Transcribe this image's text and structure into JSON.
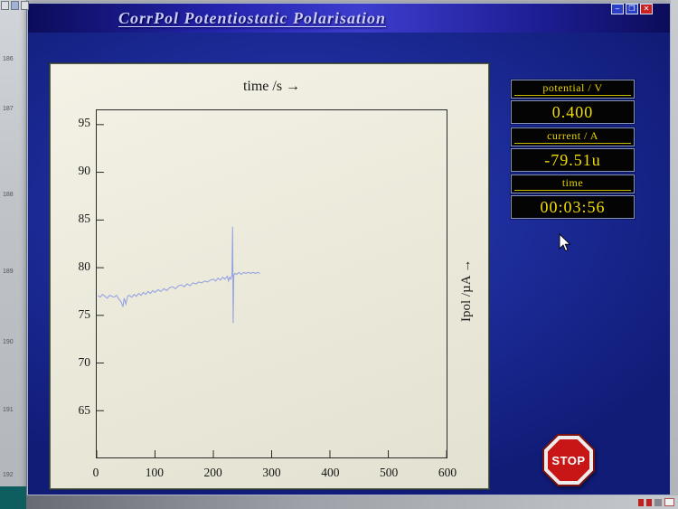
{
  "window": {
    "title": "CorrPol Potentiostatic Polarisation",
    "controls": {
      "minimize": "–",
      "maximize": "❒",
      "close": "✕"
    }
  },
  "side_strip": {
    "numbers": [
      "186",
      "187",
      "188",
      "189",
      "190",
      "191",
      "192"
    ]
  },
  "chart_data": {
    "type": "line",
    "title": "time /s →",
    "xlabel": "time /s",
    "ylabel": "Ipol /µA →",
    "xlim": [
      0,
      600
    ],
    "ylim": [
      60.1,
      96.5
    ],
    "xticks": [
      0,
      100,
      200,
      300,
      400,
      500,
      600
    ],
    "yticks": [
      65,
      70,
      75,
      80,
      85,
      90,
      95
    ],
    "grid": false,
    "legend": false,
    "series": [
      {
        "name": "Ipol",
        "color": "#96a4e2",
        "points": [
          [
            2,
            77.1
          ],
          [
            6,
            76.9
          ],
          [
            10,
            77.2
          ],
          [
            14,
            77.0
          ],
          [
            18,
            76.8
          ],
          [
            22,
            77.1
          ],
          [
            26,
            77.0
          ],
          [
            30,
            76.9
          ],
          [
            34,
            77.1
          ],
          [
            38,
            76.7
          ],
          [
            42,
            76.4
          ],
          [
            45,
            75.9
          ],
          [
            47,
            76.8
          ],
          [
            50,
            76.2
          ],
          [
            53,
            77.0
          ],
          [
            56,
            77.1
          ],
          [
            60,
            76.9
          ],
          [
            64,
            77.2
          ],
          [
            68,
            77.0
          ],
          [
            72,
            77.3
          ],
          [
            76,
            77.1
          ],
          [
            80,
            77.4
          ],
          [
            84,
            77.2
          ],
          [
            88,
            77.5
          ],
          [
            92,
            77.3
          ],
          [
            96,
            77.6
          ],
          [
            100,
            77.4
          ],
          [
            105,
            77.7
          ],
          [
            110,
            77.5
          ],
          [
            115,
            77.8
          ],
          [
            120,
            77.6
          ],
          [
            125,
            77.9
          ],
          [
            130,
            78.0
          ],
          [
            135,
            77.8
          ],
          [
            140,
            78.1
          ],
          [
            145,
            78.2
          ],
          [
            150,
            78.0
          ],
          [
            155,
            78.3
          ],
          [
            160,
            78.1
          ],
          [
            165,
            78.4
          ],
          [
            170,
            78.3
          ],
          [
            175,
            78.5
          ],
          [
            180,
            78.4
          ],
          [
            185,
            78.6
          ],
          [
            190,
            78.5
          ],
          [
            195,
            78.7
          ],
          [
            200,
            78.8
          ],
          [
            204,
            78.6
          ],
          [
            208,
            78.9
          ],
          [
            212,
            78.7
          ],
          [
            216,
            79.0
          ],
          [
            220,
            78.8
          ],
          [
            224,
            79.1
          ],
          [
            226,
            78.6
          ],
          [
            228,
            79.0
          ],
          [
            230,
            78.8
          ],
          [
            232,
            79.2
          ],
          [
            233,
            84.3
          ],
          [
            234,
            74.2
          ],
          [
            235,
            79.2
          ],
          [
            237,
            79.4
          ],
          [
            240,
            79.3
          ],
          [
            244,
            79.5
          ],
          [
            248,
            79.3
          ],
          [
            252,
            79.5
          ],
          [
            256,
            79.4
          ],
          [
            260,
            79.5
          ],
          [
            264,
            79.4
          ],
          [
            268,
            79.5
          ],
          [
            272,
            79.4
          ],
          [
            276,
            79.5
          ],
          [
            280,
            79.4
          ]
        ]
      }
    ]
  },
  "readouts": [
    {
      "id": "potential",
      "label": "potential / V",
      "value": "0.400"
    },
    {
      "id": "current",
      "label": "current / A",
      "value": "-79.51u"
    },
    {
      "id": "time",
      "label": "time",
      "value": "00:03:56"
    }
  ],
  "stop_button": {
    "label": "STOP"
  },
  "colors": {
    "titlebar": "#2424ae",
    "background": "#1b2a96",
    "panel": "#eceadb",
    "trace": "#96a4e2",
    "readout_text": "#f2de00",
    "stop_red": "#c81616"
  }
}
